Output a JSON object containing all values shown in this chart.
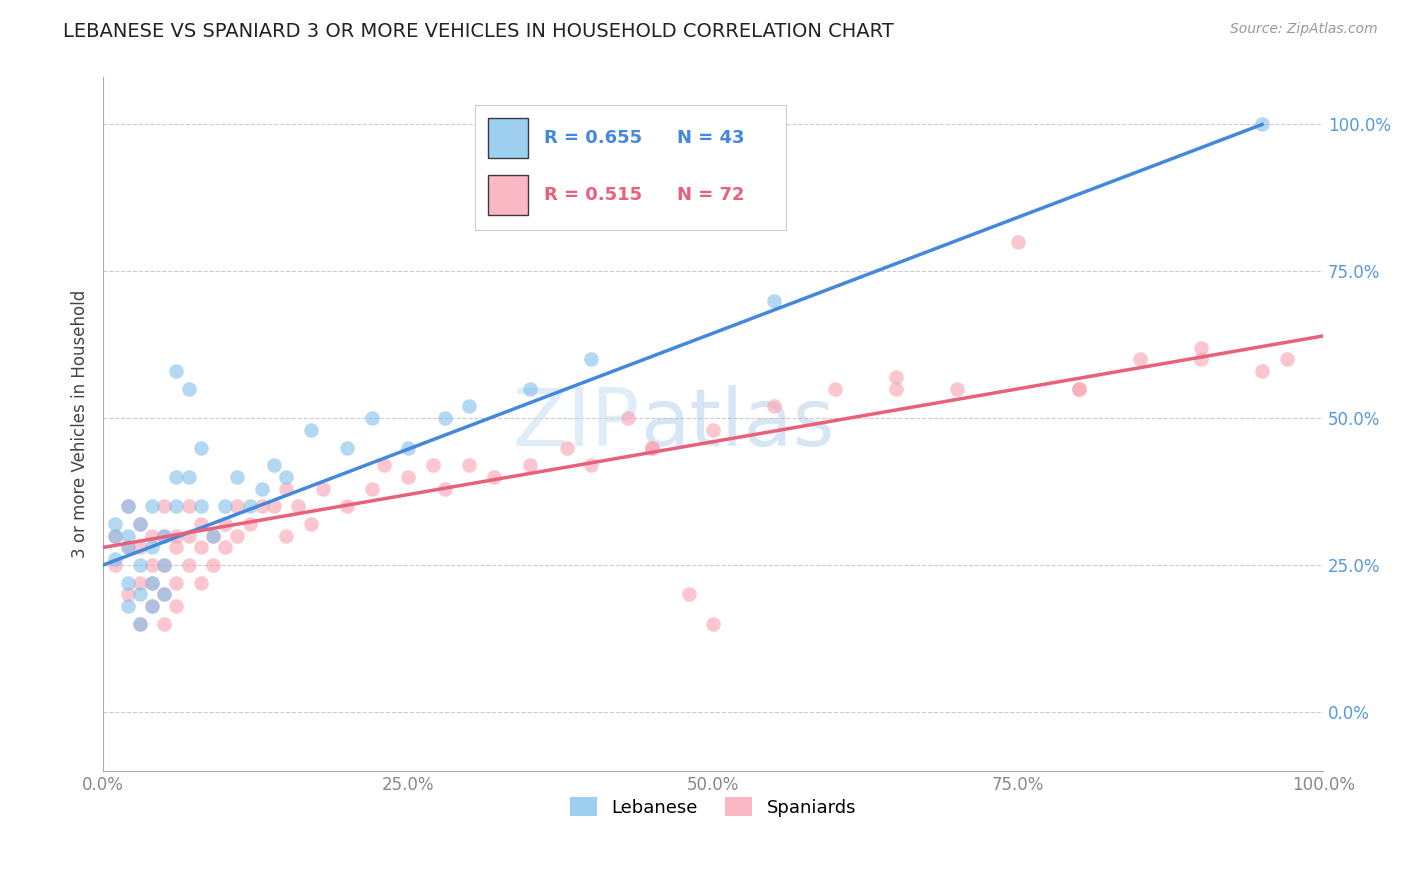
{
  "title": "LEBANESE VS SPANIARD 3 OR MORE VEHICLES IN HOUSEHOLD CORRELATION CHART",
  "source": "Source: ZipAtlas.com",
  "ylabel": "3 or more Vehicles in Household",
  "xlim": [
    0,
    100
  ],
  "ylim": [
    -10,
    108
  ],
  "xticks": [
    0,
    25,
    50,
    75,
    100
  ],
  "yticks": [
    0,
    25,
    50,
    75,
    100
  ],
  "xticklabels": [
    "0.0%",
    "25.0%",
    "50.0%",
    "75.0%",
    "100.0%"
  ],
  "yticklabels": [
    "0.0%",
    "25.0%",
    "50.0%",
    "75.0%",
    "100.0%"
  ],
  "grid_color": "#cccccc",
  "background_color": "#ffffff",
  "lebanese_color": "#7fbfea",
  "spaniard_color": "#f9a0b0",
  "lebanese_line_color": "#4488dd",
  "spaniard_line_color": "#e8607a",
  "legend_R_lebanese": "0.655",
  "legend_N_lebanese": "43",
  "legend_R_spaniard": "0.515",
  "legend_N_spaniard": "72",
  "watermark_zip": "ZIP",
  "watermark_atlas": "atlas",
  "leb_line_x0": 0,
  "leb_line_y0": 25,
  "leb_line_x1": 95,
  "leb_line_y1": 100,
  "spa_line_x0": 0,
  "spa_line_y0": 28,
  "spa_line_x1": 100,
  "spa_line_y1": 64,
  "lebanese_x": [
    1,
    1,
    1,
    2,
    2,
    2,
    2,
    2,
    3,
    3,
    3,
    3,
    4,
    4,
    4,
    4,
    5,
    5,
    5,
    6,
    6,
    6,
    7,
    7,
    8,
    8,
    9,
    10,
    11,
    12,
    13,
    14,
    15,
    17,
    20,
    22,
    25,
    28,
    30,
    35,
    40,
    55,
    95
  ],
  "lebanese_y": [
    30,
    32,
    26,
    28,
    30,
    18,
    22,
    35,
    20,
    25,
    32,
    15,
    28,
    35,
    22,
    18,
    30,
    25,
    20,
    35,
    40,
    58,
    40,
    55,
    35,
    45,
    30,
    35,
    40,
    35,
    38,
    42,
    40,
    48,
    45,
    50,
    45,
    50,
    52,
    55,
    60,
    70,
    100
  ],
  "spaniard_x": [
    1,
    1,
    2,
    2,
    2,
    3,
    3,
    3,
    3,
    4,
    4,
    4,
    4,
    5,
    5,
    5,
    5,
    5,
    6,
    6,
    6,
    6,
    7,
    7,
    7,
    8,
    8,
    8,
    9,
    9,
    10,
    10,
    11,
    11,
    12,
    13,
    14,
    15,
    15,
    16,
    17,
    18,
    20,
    22,
    23,
    25,
    27,
    28,
    30,
    32,
    35,
    38,
    40,
    43,
    45,
    48,
    50,
    55,
    60,
    65,
    70,
    75,
    80,
    85,
    90,
    95,
    97,
    50,
    80,
    90,
    45,
    65
  ],
  "spaniard_y": [
    25,
    30,
    28,
    20,
    35,
    22,
    28,
    15,
    32,
    25,
    30,
    18,
    22,
    25,
    30,
    20,
    15,
    35,
    28,
    22,
    30,
    18,
    25,
    30,
    35,
    28,
    32,
    22,
    30,
    25,
    32,
    28,
    35,
    30,
    32,
    35,
    35,
    30,
    38,
    35,
    32,
    38,
    35,
    38,
    42,
    40,
    42,
    38,
    42,
    40,
    42,
    45,
    42,
    50,
    45,
    20,
    48,
    52,
    55,
    57,
    55,
    80,
    55,
    60,
    60,
    58,
    60,
    15,
    55,
    62,
    45,
    55
  ]
}
